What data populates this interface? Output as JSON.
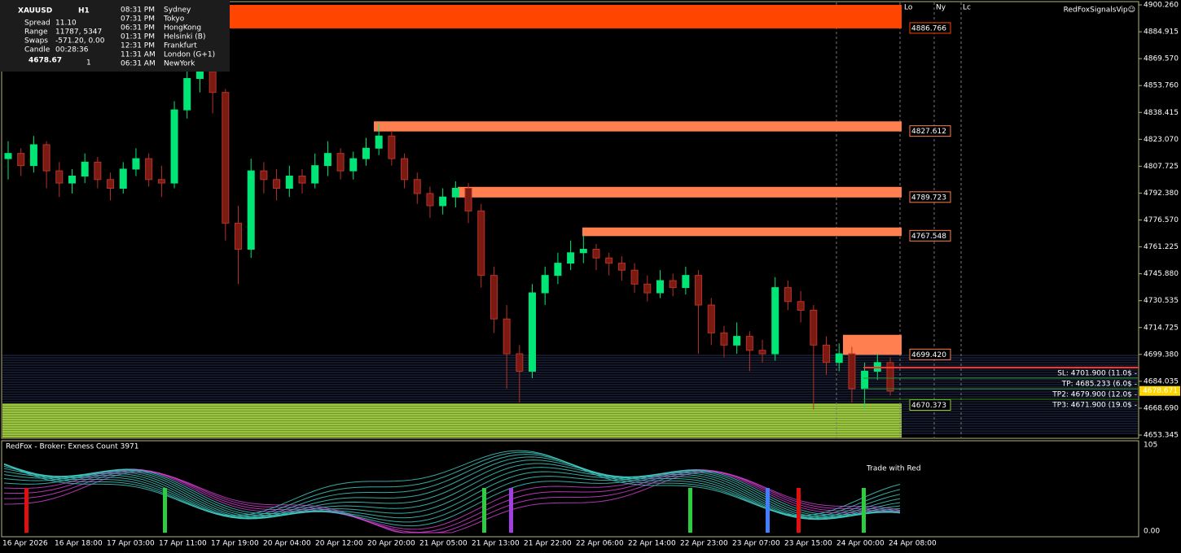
{
  "header": {
    "symbol": "XAUUSD",
    "timeframe": "H1",
    "stats": [
      [
        "Spread",
        "11.10"
      ],
      [
        "Range",
        "11787, 5347"
      ],
      [
        "Swaps",
        "-571.20, 0.00"
      ],
      [
        "Candle",
        "00:28:36"
      ]
    ],
    "price": "4678.67",
    "price_suffix": "1",
    "sessions": [
      [
        "08:31 PM",
        "Sydney"
      ],
      [
        "07:31 PM",
        "Tokyo"
      ],
      [
        "06:31 PM",
        "HongKong"
      ],
      [
        "01:31 PM",
        "Helsinki  (B)"
      ],
      [
        "12:31 PM",
        "Frankfurt"
      ],
      [
        "11:31 AM",
        "London  (G+1)"
      ],
      [
        "06:31 AM",
        "NewYork"
      ]
    ]
  },
  "brand": "RedFoxSignalsVip☺",
  "session_markers": [
    "Lo",
    "Ny",
    "Lc"
  ],
  "price_axis": [
    "4900.260",
    "4884.915",
    "4869.570",
    "4853.760",
    "4838.415",
    "4823.070",
    "4807.725",
    "4792.380",
    "4776.570",
    "4761.225",
    "4745.880",
    "4730.535",
    "4714.725",
    "4699.380",
    "4684.035",
    "4668.690",
    "4653.345"
  ],
  "current_price": "4678.671",
  "zones": [
    {
      "high": 4900.26,
      "label": "4886.766",
      "start": 282,
      "color": "#ff4500"
    },
    {
      "high": 4833.4,
      "label": "4827.612",
      "start": 459,
      "color": "#ff7f50"
    },
    {
      "high": 4795.8,
      "label": "4789.723",
      "start": 562,
      "color": "#ff7f50"
    },
    {
      "high": 4772.5,
      "label": "4767.548",
      "start": 715,
      "color": "#ff7f50"
    },
    {
      "high": 4710.9,
      "label": "4699.420",
      "start": 1035,
      "color": "#ff7f50"
    }
  ],
  "support_label": "4670.373",
  "trade": [
    {
      "text": "SL: 4701.900 (11.0$ -",
      "color": "#ffffff",
      "line": "#ff3030"
    },
    {
      "text": "TP: 4685.233 (6.0$ -",
      "color": "#3cdc3c",
      "line": "#2e8b2e"
    },
    {
      "text": "TP2: 4679.900 (12.0$ -",
      "color": "#3cdc3c",
      "line": "#2e8b2e"
    },
    {
      "text": "TP3: 4671.900 (19.0$ -",
      "color": "#ffffff",
      "line": "#2e8b2e"
    }
  ],
  "candles": [
    [
      4812,
      4822,
      4800,
      4815
    ],
    [
      4815,
      4818,
      4802,
      4808
    ],
    [
      4808,
      4825,
      4804,
      4820
    ],
    [
      4820,
      4822,
      4795,
      4805
    ],
    [
      4805,
      4810,
      4790,
      4798
    ],
    [
      4798,
      4806,
      4792,
      4802
    ],
    [
      4802,
      4815,
      4798,
      4810
    ],
    [
      4810,
      4813,
      4795,
      4800
    ],
    [
      4800,
      4804,
      4788,
      4795
    ],
    [
      4795,
      4810,
      4792,
      4806
    ],
    [
      4806,
      4818,
      4802,
      4812
    ],
    [
      4812,
      4815,
      4796,
      4800
    ],
    [
      4800,
      4808,
      4790,
      4798
    ],
    [
      4798,
      4845,
      4795,
      4840
    ],
    [
      4840,
      4868,
      4835,
      4858
    ],
    [
      4858,
      4875,
      4850,
      4862
    ],
    [
      4862,
      4866,
      4838,
      4850
    ],
    [
      4850,
      4852,
      4765,
      4775
    ],
    [
      4775,
      4785,
      4740,
      4760
    ],
    [
      4760,
      4812,
      4755,
      4805
    ],
    [
      4805,
      4810,
      4792,
      4800
    ],
    [
      4800,
      4806,
      4788,
      4795
    ],
    [
      4795,
      4808,
      4790,
      4802
    ],
    [
      4802,
      4806,
      4792,
      4798
    ],
    [
      4798,
      4815,
      4795,
      4808
    ],
    [
      4808,
      4822,
      4802,
      4815
    ],
    [
      4815,
      4818,
      4800,
      4805
    ],
    [
      4805,
      4816,
      4800,
      4812
    ],
    [
      4812,
      4824,
      4808,
      4818
    ],
    [
      4818,
      4832,
      4814,
      4825
    ],
    [
      4825,
      4828,
      4808,
      4812
    ],
    [
      4812,
      4815,
      4795,
      4800
    ],
    [
      4800,
      4804,
      4786,
      4792
    ],
    [
      4792,
      4796,
      4778,
      4785
    ],
    [
      4785,
      4795,
      4780,
      4790
    ],
    [
      4790,
      4799,
      4784,
      4795
    ],
    [
      4795,
      4798,
      4775,
      4782
    ],
    [
      4782,
      4786,
      4738,
      4745
    ],
    [
      4745,
      4750,
      4712,
      4720
    ],
    [
      4720,
      4728,
      4680,
      4700
    ],
    [
      4700,
      4705,
      4672,
      4690
    ],
    [
      4690,
      4740,
      4686,
      4735
    ],
    [
      4735,
      4750,
      4728,
      4745
    ],
    [
      4745,
      4758,
      4740,
      4752
    ],
    [
      4752,
      4765,
      4748,
      4758
    ],
    [
      4758,
      4768,
      4752,
      4760
    ],
    [
      4760,
      4763,
      4748,
      4755
    ],
    [
      4755,
      4758,
      4745,
      4752
    ],
    [
      4752,
      4756,
      4742,
      4748
    ],
    [
      4748,
      4752,
      4735,
      4740
    ],
    [
      4740,
      4745,
      4730,
      4735
    ],
    [
      4735,
      4748,
      4732,
      4742
    ],
    [
      4742,
      4746,
      4733,
      4738
    ],
    [
      4738,
      4750,
      4734,
      4745
    ],
    [
      4745,
      4748,
      4700,
      4728
    ],
    [
      4728,
      4732,
      4705,
      4712
    ],
    [
      4712,
      4716,
      4698,
      4705
    ],
    [
      4705,
      4718,
      4700,
      4710
    ],
    [
      4710,
      4713,
      4690,
      4702
    ],
    [
      4702,
      4708,
      4695,
      4700
    ],
    [
      4700,
      4744,
      4696,
      4738
    ],
    [
      4738,
      4742,
      4725,
      4730
    ],
    [
      4730,
      4736,
      4718,
      4725
    ],
    [
      4725,
      4728,
      4668,
      4705
    ],
    [
      4705,
      4710,
      4688,
      4695
    ],
    [
      4695,
      4706,
      4690,
      4700
    ],
    [
      4700,
      4704,
      4672,
      4680
    ],
    [
      4680,
      4695,
      4668,
      4690
    ],
    [
      4690,
      4700,
      4685,
      4695
    ],
    [
      4695,
      4698,
      4676,
      4678.67
    ]
  ],
  "indicator": {
    "label": "RedFox - Broker: Exness    Count  3971",
    "scale_top": "105",
    "scale_bottom": "0.00"
  },
  "banner": "Trade with Red",
  "time_axis": [
    "16 Apr 2026",
    "16 Apr 18:00",
    "17 Apr 03:00",
    "17 Apr 11:00",
    "17 Apr 19:00",
    "20 Apr 04:00",
    "20 Apr 12:00",
    "20 Apr 20:00",
    "21 Apr 05:00",
    "21 Apr 13:00",
    "21 Apr 22:00",
    "22 Apr 06:00",
    "22 Apr 14:00",
    "22 Apr 23:00",
    "23 Apr 07:00",
    "23 Apr 15:00",
    "24 Apr 00:00",
    "24 Apr 08:00"
  ]
}
